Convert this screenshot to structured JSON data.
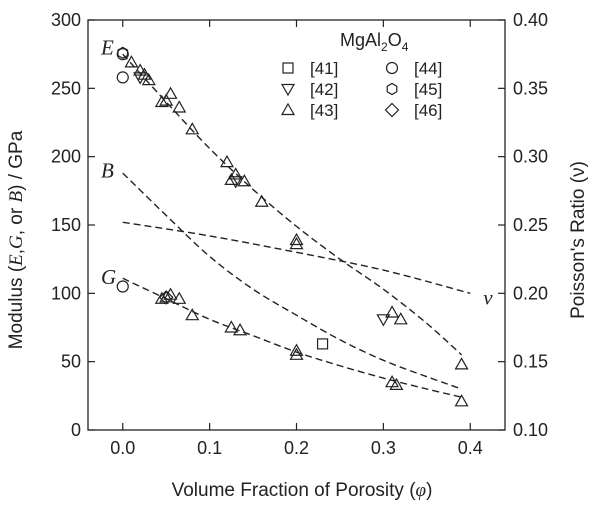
{
  "chart_data": {
    "type": "scatter",
    "xlabel_parts": [
      "Volume Fraction of Porosity (",
      "φ",
      ")"
    ],
    "ylabel_parts": [
      "Modulus (",
      "E",
      ",",
      "G",
      ", or ",
      "B",
      ") / GPa"
    ],
    "y2label": "Poisson's Ratio (ν)",
    "xlim": [
      -0.04,
      0.44
    ],
    "ylim": [
      0,
      300
    ],
    "y2lim": [
      0.1,
      0.4
    ],
    "x_ticks": [
      "0.0",
      "0.1",
      "0.2",
      "0.3",
      "0.4"
    ],
    "y_ticks": [
      "0",
      "50",
      "100",
      "150",
      "200",
      "250",
      "300"
    ],
    "y2_ticks": [
      "0.10",
      "0.15",
      "0.20",
      "0.25",
      "0.30",
      "0.35",
      "0.40"
    ],
    "legend": {
      "title": "MgAl2O4",
      "title_main": "MgAl",
      "title_sub1": "2",
      "title_mid": "O",
      "title_sub2": "4",
      "placement": "top-right",
      "entries": [
        {
          "label": "[41]",
          "marker": "square"
        },
        {
          "label": "[44]",
          "marker": "circle"
        },
        {
          "label": "[42]",
          "marker": "triangle-down"
        },
        {
          "label": "[45]",
          "marker": "hexagon"
        },
        {
          "label": "[43]",
          "marker": "triangle-up"
        },
        {
          "label": "[46]",
          "marker": "diamond"
        }
      ]
    },
    "curve_labels": [
      {
        "text": "E",
        "x": -0.025,
        "y": 280
      },
      {
        "text": "B",
        "x": -0.025,
        "y": 190
      },
      {
        "text": "G",
        "x": -0.025,
        "y": 112
      },
      {
        "text": "ν",
        "x": 0.415,
        "y": 97
      }
    ],
    "fits": [
      {
        "name": "E",
        "axis": "left",
        "x": [
          0.0,
          0.05,
          0.1,
          0.15,
          0.2,
          0.25,
          0.3,
          0.35,
          0.39
        ],
        "y": [
          275,
          240,
          206,
          176,
          149,
          125,
          103,
          78,
          55
        ]
      },
      {
        "name": "B",
        "axis": "left",
        "x": [
          0.0,
          0.05,
          0.1,
          0.15,
          0.2,
          0.25,
          0.3,
          0.35,
          0.39
        ],
        "y": [
          188,
          157,
          127,
          103,
          84,
          66,
          51,
          39,
          30
        ]
      },
      {
        "name": "G",
        "axis": "left",
        "x": [
          0.0,
          0.05,
          0.1,
          0.15,
          0.2,
          0.25,
          0.3,
          0.35,
          0.39
        ],
        "y": [
          111,
          96,
          81,
          69,
          57,
          47,
          38,
          30,
          24
        ]
      },
      {
        "name": "ν",
        "axis": "right",
        "x": [
          0.0,
          0.1,
          0.2,
          0.3,
          0.4
        ],
        "y": [
          0.252,
          0.242,
          0.23,
          0.217,
          0.2
        ]
      }
    ],
    "series": [
      {
        "name": "[41]",
        "marker": "square",
        "points": [
          [
            0.23,
            63
          ]
        ]
      },
      {
        "name": "[42]",
        "marker": "triangle-down",
        "points": [
          [
            0.02,
            258
          ],
          [
            0.13,
            182
          ],
          [
            0.3,
            81
          ]
        ]
      },
      {
        "name": "[43]",
        "marker": "triangle-up",
        "points": [
          [
            0.01,
            269
          ],
          [
            0.02,
            263
          ],
          [
            0.025,
            260
          ],
          [
            0.03,
            256
          ],
          [
            0.045,
            240
          ],
          [
            0.05,
            241
          ],
          [
            0.055,
            246
          ],
          [
            0.065,
            236
          ],
          [
            0.08,
            220
          ],
          [
            0.12,
            196
          ],
          [
            0.125,
            183
          ],
          [
            0.13,
            187
          ],
          [
            0.14,
            182
          ],
          [
            0.16,
            167
          ],
          [
            0.2,
            136
          ],
          [
            0.2,
            139
          ],
          [
            0.31,
            86
          ],
          [
            0.32,
            81
          ],
          [
            0.39,
            48
          ],
          [
            0.045,
            96
          ],
          [
            0.05,
            97
          ],
          [
            0.055,
            99
          ],
          [
            0.065,
            96
          ],
          [
            0.08,
            84
          ],
          [
            0.125,
            75
          ],
          [
            0.135,
            73
          ],
          [
            0.2,
            55
          ],
          [
            0.2,
            58
          ],
          [
            0.31,
            35
          ],
          [
            0.315,
            33
          ],
          [
            0.39,
            21
          ]
        ]
      },
      {
        "name": "[44]",
        "marker": "circle",
        "points": [
          [
            0.0,
            275
          ],
          [
            0.0,
            258
          ],
          [
            0.0,
            105
          ]
        ]
      },
      {
        "name": "[45]",
        "marker": "hexagon",
        "points": [
          [
            0.0,
            276
          ]
        ]
      },
      {
        "name": "[46]",
        "marker": "diamond",
        "points": [
          [
            0.05,
            97
          ]
        ]
      }
    ]
  }
}
